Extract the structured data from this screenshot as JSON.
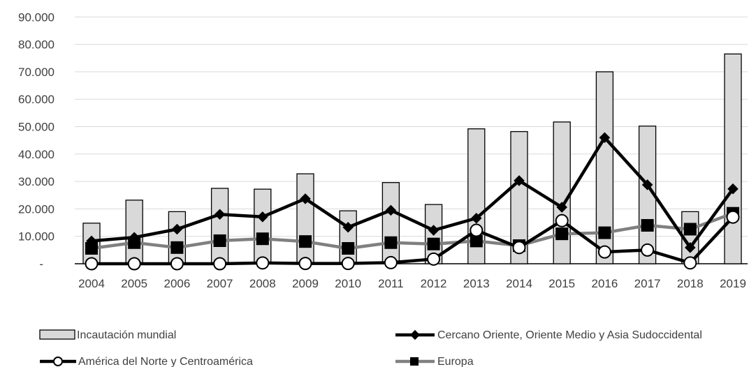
{
  "chart_data": {
    "type": "bar",
    "categories": [
      "2004",
      "2005",
      "2006",
      "2007",
      "2008",
      "2009",
      "2010",
      "2011",
      "2012",
      "2013",
      "2014",
      "2015",
      "2016",
      "2017",
      "2018",
      "2019"
    ],
    "y_tick_labels": [
      "-",
      "10.000",
      "20.000",
      "30.000",
      "40.000",
      "50.000",
      "60.000",
      "70.000",
      "80.000",
      "90.000"
    ],
    "ylim": [
      0,
      90000
    ],
    "grid": true,
    "legend_position": "bottom",
    "series": [
      {
        "name": "Incautación mundial",
        "kind": "bar",
        "color": "#d9d9d9",
        "values": [
          14800,
          23200,
          19000,
          27500,
          27200,
          32800,
          19300,
          29600,
          21600,
          49200,
          48200,
          51700,
          70000,
          50200,
          19000,
          76500
        ]
      },
      {
        "name": "Cercano Oriente, Oriente Medio y Asia Sudoccidental",
        "kind": "line",
        "marker": "diamond",
        "color": "#000000",
        "values": [
          8300,
          9600,
          12600,
          18000,
          17100,
          23700,
          13300,
          19500,
          12200,
          16600,
          30300,
          20600,
          46000,
          28800,
          5900,
          27300
        ]
      },
      {
        "name": "América del Norte y Centroamérica",
        "kind": "line",
        "marker": "circle",
        "color": "#000000",
        "values": [
          0,
          0,
          0,
          0,
          300,
          100,
          100,
          400,
          1700,
          12200,
          5900,
          15700,
          4300,
          5000,
          300,
          17000
        ]
      },
      {
        "name": "Europa",
        "kind": "line",
        "marker": "square",
        "color": "#808080",
        "values": [
          5600,
          7700,
          5900,
          8400,
          9100,
          8100,
          5600,
          7700,
          7200,
          8300,
          6600,
          10900,
          11300,
          14000,
          12600,
          18400
        ]
      }
    ]
  }
}
